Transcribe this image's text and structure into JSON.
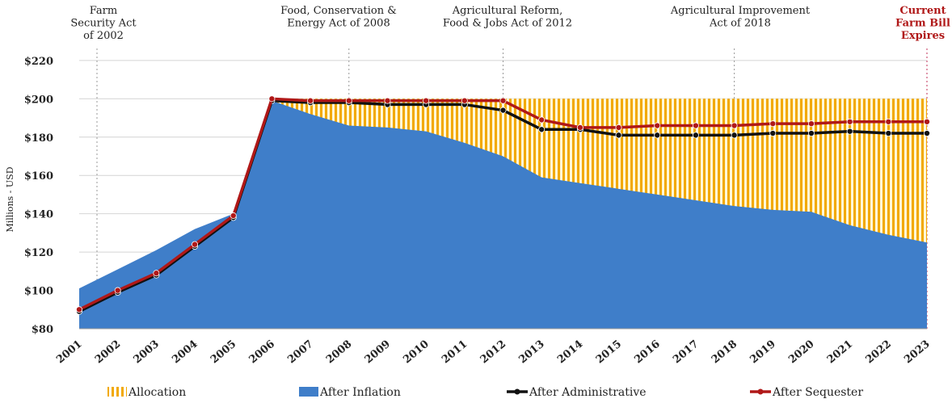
{
  "chart_data": {
    "type": "area",
    "ylabel": "Millions - USD",
    "ylim": [
      80,
      225
    ],
    "yticks": [
      "$80",
      "$100",
      "$120",
      "$140",
      "$160",
      "$180",
      "$200",
      "$220"
    ],
    "ytick_values": [
      80,
      100,
      120,
      140,
      160,
      180,
      200,
      220
    ],
    "grid": true,
    "x": [
      "2001",
      "2002",
      "2003",
      "2004",
      "2005",
      "2006",
      "2007",
      "2008",
      "2009",
      "2010",
      "2011",
      "2012",
      "2013",
      "2014",
      "2015",
      "2016",
      "2017",
      "2018",
      "2019",
      "2020",
      "2021",
      "2022",
      "2023"
    ],
    "series": [
      {
        "name": "Allocation",
        "kind": "area-hatched",
        "color": "#f2a900",
        "values": [
          null,
          null,
          null,
          null,
          null,
          200,
          200,
          200,
          200,
          200,
          200,
          200,
          200,
          200,
          200,
          200,
          200,
          200,
          200,
          200,
          200,
          200,
          200
        ]
      },
      {
        "name": "After Inflation",
        "kind": "area",
        "color": "#3f7ec9",
        "values": [
          101,
          111,
          121,
          132,
          140,
          199,
          192,
          186,
          185,
          183,
          177,
          170,
          159,
          156,
          153,
          150,
          147,
          144,
          142,
          141,
          134,
          129,
          125
        ]
      },
      {
        "name": "After Administrative",
        "kind": "line",
        "color": "#111111",
        "values": [
          89,
          99,
          108,
          123,
          138,
          199,
          198,
          198,
          197,
          197,
          197,
          194,
          184,
          184,
          181,
          181,
          181,
          181,
          182,
          182,
          183,
          182,
          182
        ]
      },
      {
        "name": "After Sequester",
        "kind": "line",
        "color": "#b01818",
        "values": [
          90,
          100,
          109,
          124,
          139,
          200,
          199,
          199,
          199,
          199,
          199,
          199,
          189,
          185,
          185,
          186,
          186,
          186,
          187,
          187,
          188,
          188,
          188
        ]
      }
    ],
    "legend_position": "bottom",
    "annotations": [
      {
        "lines": [
          "Farm",
          "Security Act",
          "of 2002"
        ],
        "year": "2001",
        "style": "normal"
      },
      {
        "lines": [
          "Food, Conservation &",
          "Energy Act of 2008"
        ],
        "year": "2008",
        "style": "normal"
      },
      {
        "lines": [
          "Agricultural Reform,",
          "Food & Jobs Act of 2012"
        ],
        "year": "2012",
        "style": "normal"
      },
      {
        "lines": [
          "Agricultural Improvement",
          "Act of 2018"
        ],
        "year": "2018",
        "style": "normal"
      },
      {
        "lines": [
          "Current",
          "Farm Bill",
          "Expires"
        ],
        "year": "2023",
        "style": "red"
      }
    ]
  }
}
